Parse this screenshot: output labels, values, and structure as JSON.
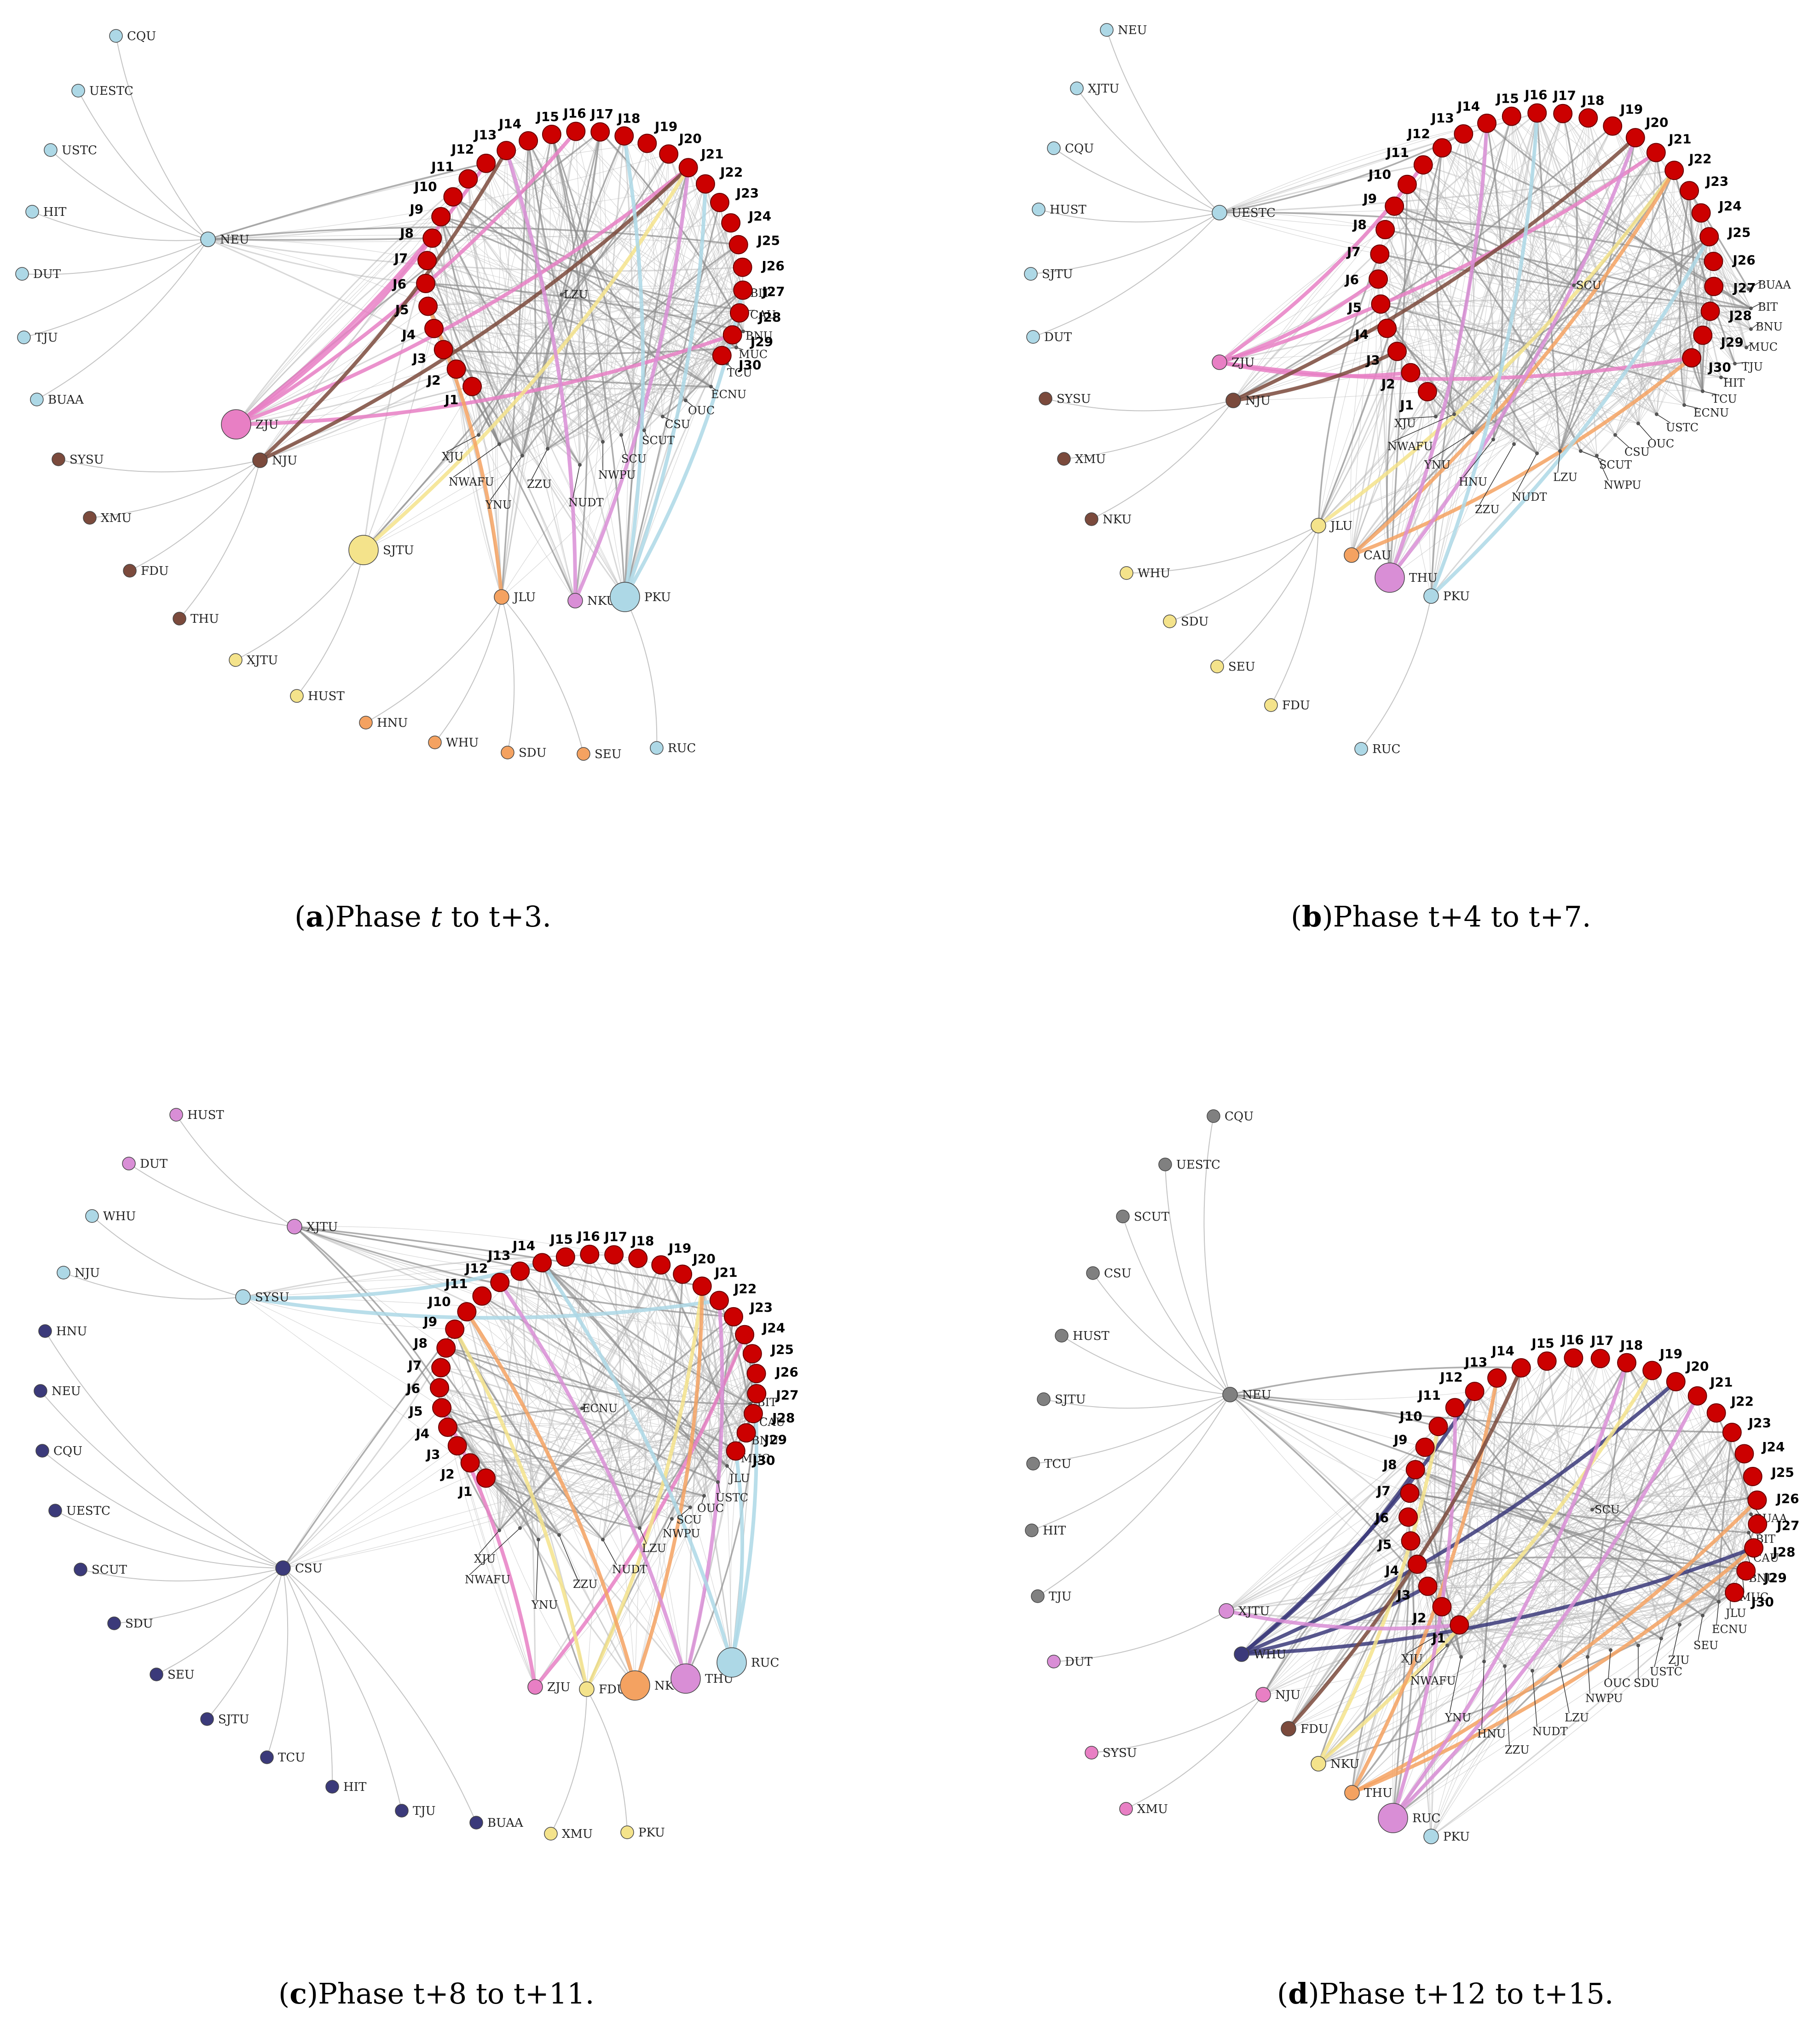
{
  "figure": {
    "panels": [
      {
        "id": "a",
        "caption": {
          "open": "(",
          "letter": "a",
          "close": ")",
          "text_before": "Phase ",
          "italic": "t",
          "text_after": " to t+3."
        },
        "journals": [
          "J1",
          "J2",
          "J3",
          "J4",
          "J5",
          "J6",
          "J7",
          "J8",
          "J9",
          "J10",
          "J11",
          "J12",
          "J13",
          "J14",
          "J15",
          "J16",
          "J17",
          "J18",
          "J19",
          "J20",
          "J21",
          "J22",
          "J23",
          "J24",
          "J25",
          "J26",
          "J27",
          "J28",
          "J29",
          "J30"
        ],
        "hubs": [
          {
            "name": "NEU",
            "color": "#add8e6",
            "size": "small"
          },
          {
            "name": "ZJU",
            "color": "#e87fc4",
            "size": "medium"
          },
          {
            "name": "NJU",
            "color": "#7b4a3c",
            "size": "small"
          },
          {
            "name": "SJTU",
            "color": "#f4e38b",
            "size": "medium"
          },
          {
            "name": "JLU",
            "color": "#f4a261",
            "size": "small"
          },
          {
            "name": "NKU",
            "color": "#d98ed6",
            "size": "small"
          },
          {
            "name": "PKU",
            "color": "#add8e6",
            "size": "medium"
          }
        ],
        "satellites": [
          {
            "name": "CQU",
            "hub": "NEU",
            "color": "#add8e6"
          },
          {
            "name": "UESTC",
            "hub": "NEU",
            "color": "#add8e6"
          },
          {
            "name": "USTC",
            "hub": "NEU",
            "color": "#add8e6"
          },
          {
            "name": "HIT",
            "hub": "NEU",
            "color": "#add8e6"
          },
          {
            "name": "DUT",
            "hub": "NEU",
            "color": "#add8e6"
          },
          {
            "name": "TJU",
            "hub": "NEU",
            "color": "#add8e6"
          },
          {
            "name": "BUAA",
            "hub": "NEU",
            "color": "#add8e6"
          },
          {
            "name": "SYSU",
            "hub": "NJU",
            "color": "#7b4a3c"
          },
          {
            "name": "XMU",
            "hub": "NJU",
            "color": "#7b4a3c"
          },
          {
            "name": "FDU",
            "hub": "NJU",
            "color": "#7b4a3c"
          },
          {
            "name": "THU",
            "hub": "NJU",
            "color": "#7b4a3c"
          },
          {
            "name": "XJTU",
            "hub": "SJTU",
            "color": "#f4e38b"
          },
          {
            "name": "HUST",
            "hub": "SJTU",
            "color": "#f4e38b"
          },
          {
            "name": "HNU",
            "hub": "JLU",
            "color": "#f4a261"
          },
          {
            "name": "WHU",
            "hub": "JLU",
            "color": "#f4a261"
          },
          {
            "name": "SDU",
            "hub": "JLU",
            "color": "#f4a261"
          },
          {
            "name": "SEU",
            "hub": "JLU",
            "color": "#f4a261"
          },
          {
            "name": "RUC",
            "hub": "PKU",
            "color": "#add8e6"
          }
        ],
        "inner": [
          "XJU",
          "NWAFU",
          "YNU",
          "ZZU",
          "NUDT",
          "NWPU",
          "SCU",
          "SCUT",
          "CSU",
          "OUC",
          "ECNU",
          "TCU",
          "MUC",
          "BNU",
          "CAU",
          "BIT",
          "LZU"
        ]
      },
      {
        "id": "b",
        "caption": {
          "open": "(",
          "letter": "b",
          "close": ")",
          "text_before": "Phase t+4 to t+7.",
          "italic": "",
          "text_after": ""
        },
        "journals": [
          "J1",
          "J2",
          "J3",
          "J4",
          "J5",
          "J6",
          "J7",
          "J8",
          "J9",
          "J10",
          "J11",
          "J12",
          "J13",
          "J14",
          "J15",
          "J16",
          "J17",
          "J18",
          "J19",
          "J20",
          "J21",
          "J22",
          "J23",
          "J24",
          "J25",
          "J26",
          "J27",
          "J28",
          "J29",
          "J30"
        ],
        "hubs": [
          {
            "name": "UESTC",
            "color": "#add8e6",
            "size": "small"
          },
          {
            "name": "ZJU",
            "color": "#e87fc4",
            "size": "small"
          },
          {
            "name": "NJU",
            "color": "#7b4a3c",
            "size": "small"
          },
          {
            "name": "JLU",
            "color": "#f4e38b",
            "size": "small"
          },
          {
            "name": "CAU",
            "color": "#f4a261",
            "size": "small"
          },
          {
            "name": "THU",
            "color": "#d98ed6",
            "size": "medium"
          },
          {
            "name": "PKU",
            "color": "#add8e6",
            "size": "small"
          }
        ],
        "satellites": [
          {
            "name": "NEU",
            "hub": "UESTC",
            "color": "#add8e6"
          },
          {
            "name": "XJTU",
            "hub": "UESTC",
            "color": "#add8e6"
          },
          {
            "name": "CQU",
            "hub": "UESTC",
            "color": "#add8e6"
          },
          {
            "name": "HUST",
            "hub": "UESTC",
            "color": "#add8e6"
          },
          {
            "name": "SJTU",
            "hub": "UESTC",
            "color": "#add8e6"
          },
          {
            "name": "DUT",
            "hub": "UESTC",
            "color": "#add8e6"
          },
          {
            "name": "SYSU",
            "hub": "NJU",
            "color": "#7b4a3c"
          },
          {
            "name": "XMU",
            "hub": "NJU",
            "color": "#7b4a3c"
          },
          {
            "name": "NKU",
            "hub": "NJU",
            "color": "#7b4a3c"
          },
          {
            "name": "WHU",
            "hub": "JLU",
            "color": "#f4e38b"
          },
          {
            "name": "SDU",
            "hub": "JLU",
            "color": "#f4e38b"
          },
          {
            "name": "SEU",
            "hub": "JLU",
            "color": "#f4e38b"
          },
          {
            "name": "FDU",
            "hub": "JLU",
            "color": "#f4e38b"
          },
          {
            "name": "RUC",
            "hub": "PKU",
            "color": "#add8e6"
          }
        ],
        "inner": [
          "XJU",
          "NWAFU",
          "YNU",
          "HNU",
          "ZZU",
          "NUDT",
          "LZU",
          "SCUT",
          "NWPU",
          "CSU",
          "OUC",
          "USTC",
          "ECNU",
          "TCU",
          "HIT",
          "TJU",
          "MUC",
          "BNU",
          "BIT",
          "BUAA",
          "SCU"
        ]
      },
      {
        "id": "c",
        "caption": {
          "open": "(",
          "letter": "c",
          "close": ")",
          "text_before": "Phase t+8 to t+11.",
          "italic": "",
          "text_after": ""
        },
        "journals": [
          "J1",
          "J2",
          "J3",
          "J4",
          "J5",
          "J6",
          "J7",
          "J8",
          "J9",
          "J10",
          "J11",
          "J12",
          "J13",
          "J14",
          "J15",
          "J16",
          "J17",
          "J18",
          "J19",
          "J20",
          "J21",
          "J22",
          "J23",
          "J24",
          "J25",
          "J26",
          "J27",
          "J28",
          "J29",
          "J30"
        ],
        "hubs": [
          {
            "name": "XJTU",
            "color": "#d98ed6",
            "size": "small"
          },
          {
            "name": "SYSU",
            "color": "#add8e6",
            "size": "small"
          },
          {
            "name": "CSU",
            "color": "#3b3a7a",
            "size": "small"
          },
          {
            "name": "ZJU",
            "color": "#e87fc4",
            "size": "small"
          },
          {
            "name": "FDU",
            "color": "#f4e38b",
            "size": "small"
          },
          {
            "name": "NKU",
            "color": "#f4a261",
            "size": "medium"
          },
          {
            "name": "THU",
            "color": "#d98ed6",
            "size": "medium"
          },
          {
            "name": "RUC",
            "color": "#add8e6",
            "size": "medium"
          }
        ],
        "satellites": [
          {
            "name": "HUST",
            "hub": "XJTU",
            "color": "#d98ed6"
          },
          {
            "name": "DUT",
            "hub": "XJTU",
            "color": "#d98ed6"
          },
          {
            "name": "WHU",
            "hub": "SYSU",
            "color": "#add8e6"
          },
          {
            "name": "NJU",
            "hub": "SYSU",
            "color": "#add8e6"
          },
          {
            "name": "HNU",
            "hub": "CSU",
            "color": "#3b3a7a"
          },
          {
            "name": "NEU",
            "hub": "CSU",
            "color": "#3b3a7a"
          },
          {
            "name": "CQU",
            "hub": "CSU",
            "color": "#3b3a7a"
          },
          {
            "name": "UESTC",
            "hub": "CSU",
            "color": "#3b3a7a"
          },
          {
            "name": "SCUT",
            "hub": "CSU",
            "color": "#3b3a7a"
          },
          {
            "name": "SDU",
            "hub": "CSU",
            "color": "#3b3a7a"
          },
          {
            "name": "SEU",
            "hub": "CSU",
            "color": "#3b3a7a"
          },
          {
            "name": "SJTU",
            "hub": "CSU",
            "color": "#3b3a7a"
          },
          {
            "name": "TCU",
            "hub": "CSU",
            "color": "#3b3a7a"
          },
          {
            "name": "HIT",
            "hub": "CSU",
            "color": "#3b3a7a"
          },
          {
            "name": "TJU",
            "hub": "CSU",
            "color": "#3b3a7a"
          },
          {
            "name": "BUAA",
            "hub": "CSU",
            "color": "#3b3a7a"
          },
          {
            "name": "XMU",
            "hub": "FDU",
            "color": "#f4e38b"
          },
          {
            "name": "PKU",
            "hub": "FDU",
            "color": "#f4e38b"
          }
        ],
        "inner": [
          "XJU",
          "NWAFU",
          "YNU",
          "ZZU",
          "NUDT",
          "LZU",
          "NWPU",
          "SCU",
          "OUC",
          "USTC",
          "JLU",
          "MUC",
          "BNU",
          "CAU",
          "BIT",
          "ECNU"
        ]
      },
      {
        "id": "d",
        "caption": {
          "open": "(",
          "letter": "d",
          "close": ")",
          "text_before": "Phase t+12 to t+15.",
          "italic": "",
          "text_after": ""
        },
        "journals": [
          "J1",
          "J2",
          "J3",
          "J4",
          "J5",
          "J6",
          "J7",
          "J8",
          "J9",
          "J10",
          "J11",
          "J12",
          "J13",
          "J14",
          "J15",
          "J16",
          "J17",
          "J18",
          "J19",
          "J20",
          "J21",
          "J22",
          "J23",
          "J24",
          "J25",
          "J26",
          "J27",
          "J28",
          "J29",
          "J30"
        ],
        "hubs": [
          {
            "name": "NEU",
            "color": "#808080",
            "size": "small"
          },
          {
            "name": "XJTU",
            "color": "#d98ed6",
            "size": "small"
          },
          {
            "name": "WHU",
            "color": "#3b3a7a",
            "size": "small"
          },
          {
            "name": "NJU",
            "color": "#e87fc4",
            "size": "small"
          },
          {
            "name": "FDU",
            "color": "#7b4a3c",
            "size": "small"
          },
          {
            "name": "NKU",
            "color": "#f4e38b",
            "size": "small"
          },
          {
            "name": "THU",
            "color": "#f4a261",
            "size": "small"
          },
          {
            "name": "RUC",
            "color": "#d98ed6",
            "size": "medium"
          },
          {
            "name": "PKU",
            "color": "#add8e6",
            "size": "small"
          }
        ],
        "satellites": [
          {
            "name": "CQU",
            "hub": "NEU",
            "color": "#808080"
          },
          {
            "name": "UESTC",
            "hub": "NEU",
            "color": "#808080"
          },
          {
            "name": "SCUT",
            "hub": "NEU",
            "color": "#808080"
          },
          {
            "name": "CSU",
            "hub": "NEU",
            "color": "#808080"
          },
          {
            "name": "HUST",
            "hub": "NEU",
            "color": "#808080"
          },
          {
            "name": "SJTU",
            "hub": "NEU",
            "color": "#808080"
          },
          {
            "name": "TCU",
            "hub": "NEU",
            "color": "#808080"
          },
          {
            "name": "HIT",
            "hub": "NEU",
            "color": "#808080"
          },
          {
            "name": "TJU",
            "hub": "NEU",
            "color": "#808080"
          },
          {
            "name": "DUT",
            "hub": "XJTU",
            "color": "#d98ed6"
          },
          {
            "name": "SYSU",
            "hub": "NJU",
            "color": "#e87fc4"
          },
          {
            "name": "XMU",
            "hub": "NJU",
            "color": "#e87fc4"
          }
        ],
        "inner": [
          "XJU",
          "NWAFU",
          "YNU",
          "HNU",
          "ZZU",
          "NUDT",
          "LZU",
          "NWPU",
          "OUC",
          "SDU",
          "USTC",
          "ZJU",
          "SEU",
          "ECNU",
          "JLU",
          "MUC",
          "BNU",
          "CAU",
          "BIT",
          "BUAA",
          "SCU"
        ]
      }
    ]
  }
}
